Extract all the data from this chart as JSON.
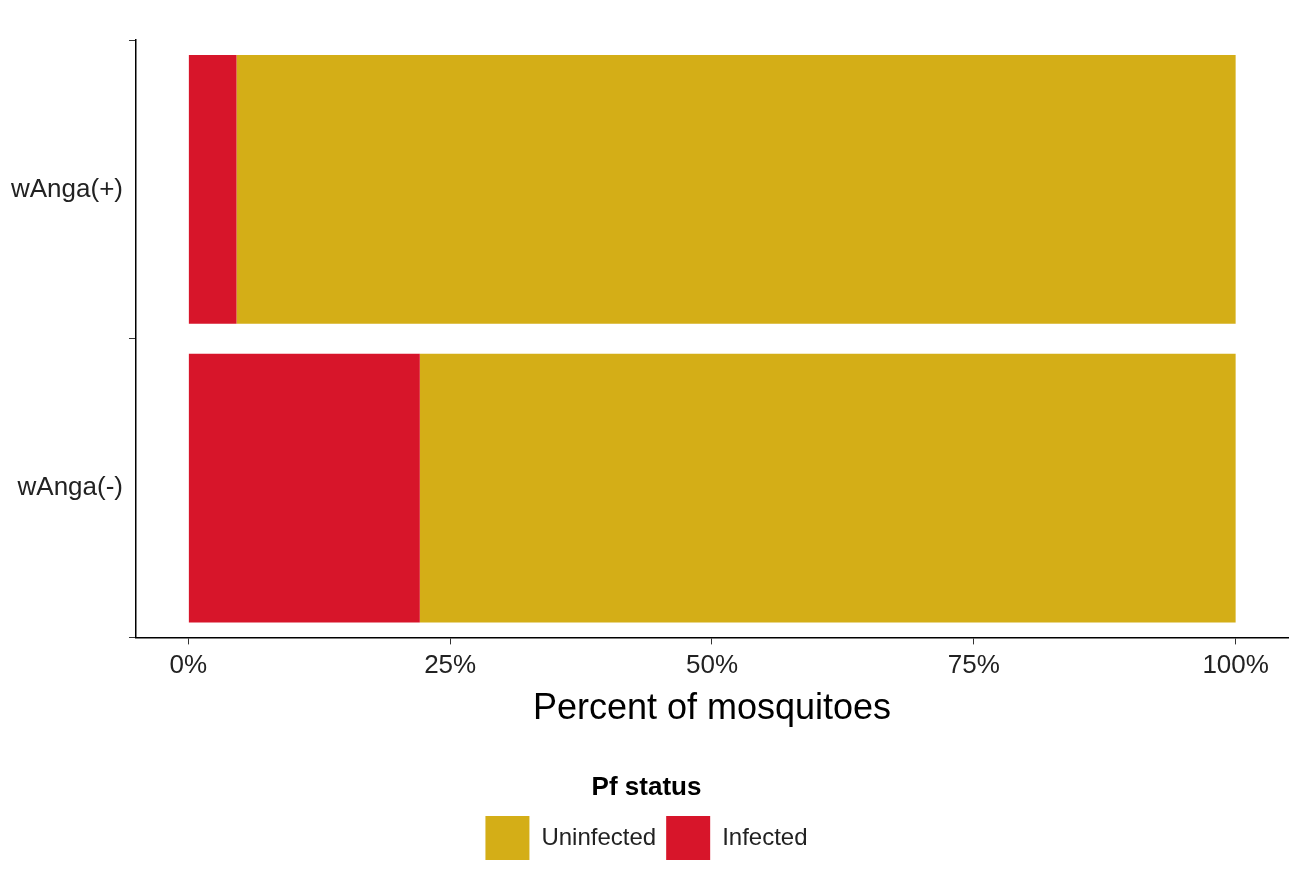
{
  "chart_data": {
    "type": "bar",
    "orientation": "horizontal",
    "stacked": true,
    "xlabel": "Percent of mosquitoes",
    "legend_title": "Pf status",
    "legend": "bottom",
    "grid": false,
    "categories": [
      "wAnga(+)",
      "wAnga(-)"
    ],
    "series": [
      {
        "name": "Infected",
        "color": "#d7152a",
        "values": [
          4.6,
          22.1
        ]
      },
      {
        "name": "Uninfected",
        "color": "#d4ae17",
        "values": [
          95.4,
          77.9
        ]
      }
    ],
    "xlim": [
      -5,
      105
    ],
    "xticks": [
      {
        "value": 0,
        "label": "0%"
      },
      {
        "value": 25,
        "label": "25%"
      },
      {
        "value": 50,
        "label": "50%"
      },
      {
        "value": 75,
        "label": "75%"
      },
      {
        "value": 100,
        "label": "100%"
      }
    ]
  }
}
